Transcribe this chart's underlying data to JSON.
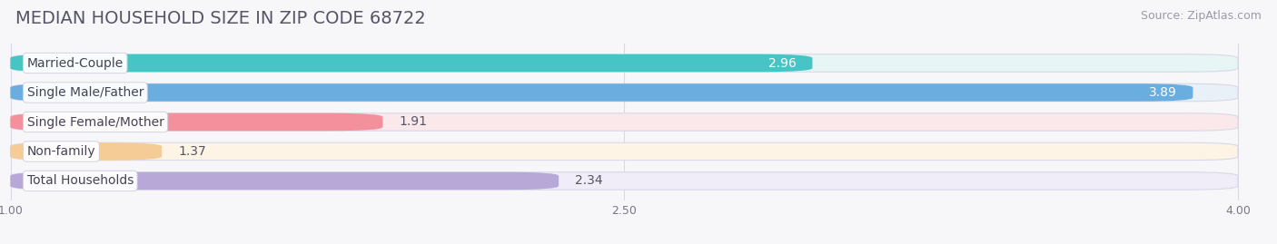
{
  "title": "MEDIAN HOUSEHOLD SIZE IN ZIP CODE 68722",
  "source": "Source: ZipAtlas.com",
  "categories": [
    "Married-Couple",
    "Single Male/Father",
    "Single Female/Mother",
    "Non-family",
    "Total Households"
  ],
  "values": [
    2.96,
    3.89,
    1.91,
    1.37,
    2.34
  ],
  "bar_colors": [
    "#47C4C4",
    "#6AAEE0",
    "#F4909C",
    "#F5CC96",
    "#B8A8D8"
  ],
  "bar_bg_colors": [
    "#E8F5F5",
    "#E8F0F8",
    "#FBE8EA",
    "#FDF4E6",
    "#F0ECF8"
  ],
  "value_inside": [
    true,
    true,
    false,
    false,
    false
  ],
  "xmin": 1.0,
  "xmax": 4.0,
  "xticks": [
    1.0,
    2.5,
    4.0
  ],
  "background_color": "#f7f7fa",
  "bar_row_bg": "#ededf5",
  "title_fontsize": 14,
  "source_fontsize": 9,
  "label_fontsize": 10,
  "value_fontsize": 10,
  "figwidth": 14.06,
  "figheight": 2.69
}
